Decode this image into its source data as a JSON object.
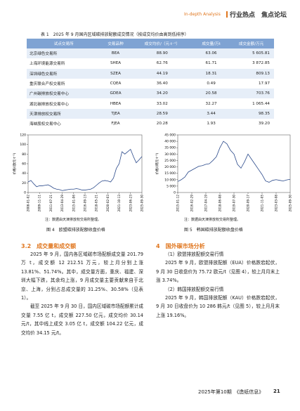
{
  "header": {
    "section_en": "In-depth Analysis",
    "section": "行业热点　焦点论坛"
  },
  "table": {
    "caption": "表 1　2025 年 9 月国内区域碳排放配额成交情况（按成交均价由高到低排序）",
    "columns": [
      "试点交易所",
      "交易品种",
      "成交均价/（元·t⁻¹）",
      "成交量/万t",
      "成交金额/万元"
    ],
    "rows": [
      [
        "北京绿色交易所",
        "BEA",
        "88.90",
        "63.06",
        "5 605.81"
      ],
      [
        "上海环境能源交易所",
        "SHEA",
        "62.76",
        "61.71",
        "3 872.85"
      ],
      [
        "深圳绿色交易所",
        "SZEA",
        "44.19",
        "18.31",
        "809.13"
      ],
      [
        "重庆联合产权交易所",
        "CQEA",
        "36.40",
        "0.49",
        "17.97"
      ],
      [
        "广州碳排放权交易中心",
        "GDEA",
        "34.20",
        "20.58",
        "703.76"
      ],
      [
        "湖北碳排放权交易中心",
        "HBEA",
        "33.02",
        "32.27",
        "1 065.44"
      ],
      [
        "天津排放权交易所",
        "TJEA",
        "28.59",
        "3.44",
        "98.35"
      ],
      [
        "海峡股权交易中心",
        "FJEA",
        "20.28",
        "1.93",
        "39.20"
      ]
    ]
  },
  "chart_data": [
    {
      "type": "line",
      "y_label": "价格/(欧元·t⁻¹)",
      "note": "注：数据由天津排放权交易所整理。",
      "caption": "图 4　欧盟碳排放配额收盘价格",
      "color": "#2b4a8b",
      "categories": [
        "2008-01-02",
        null,
        null,
        null,
        "2009-11-11",
        null,
        null,
        null,
        "2011-07-21",
        null,
        null,
        null,
        "2013-04-29",
        null,
        null,
        null,
        "2015-01-06",
        null,
        null,
        null,
        "2016-09-13",
        null,
        null,
        null,
        "2018-05-21",
        null,
        null,
        null,
        "2020-02-03",
        null,
        null,
        null,
        "2021-10-13",
        null,
        null,
        null,
        "2023-06-23",
        null,
        null,
        null,
        "2025-09-30"
      ],
      "values": [
        22,
        25,
        18,
        12,
        14,
        14,
        15,
        16,
        13,
        9,
        7,
        6,
        4,
        5,
        6,
        7,
        7,
        8,
        7,
        5,
        5,
        6,
        7,
        10,
        15,
        20,
        24,
        25,
        24,
        22,
        30,
        50,
        60,
        85,
        80,
        85,
        90,
        75,
        62,
        68,
        75
      ],
      "ylim": [
        0,
        120
      ],
      "yticks": [
        0,
        20,
        40,
        60,
        80,
        100,
        120
      ]
    },
    {
      "type": "line",
      "y_label": "价格/(韩元·t⁻¹)",
      "note": "注：数据由天津排放权交易所整理。",
      "caption": "图 5　韩国碳排放配额收盘价格",
      "color": "#2b4a8b",
      "categories": [
        "2015-01-12",
        null,
        null,
        null,
        "2016-02-29",
        null,
        null,
        null,
        "2017-04-19",
        null,
        null,
        null,
        "2018-06-08",
        null,
        null,
        null,
        "2019-07-30",
        null,
        null,
        null,
        "2020-09-17",
        null,
        null,
        null,
        "2021-11-05",
        null,
        null,
        null,
        "2023-03-08",
        null,
        null,
        null,
        "2025-09-30"
      ],
      "values": [
        8600,
        10000,
        12000,
        16000,
        17500,
        19000,
        20500,
        21000,
        22000,
        22500,
        25000,
        28000,
        35000,
        40000,
        38000,
        33000,
        30000,
        22000,
        19000,
        24000,
        30000,
        26000,
        22000,
        18000,
        14000,
        9000,
        8000,
        9500,
        10000,
        9500,
        9000,
        9800,
        10300
      ],
      "ylim": [
        0,
        45000
      ],
      "yticks": [
        0,
        {
          "value": 5000,
          "label": "5 000"
        },
        {
          "value": 10000,
          "label": "10 000"
        },
        {
          "value": 15000,
          "label": "15 000"
        },
        {
          "value": 20000,
          "label": "20 000"
        },
        {
          "value": 25000,
          "label": "25 000"
        },
        {
          "value": 30000,
          "label": "30 000"
        },
        {
          "value": 35000,
          "label": "35 000"
        },
        {
          "value": 40000,
          "label": "40 000"
        },
        {
          "value": 45000,
          "label": "45 000"
        }
      ]
    }
  ],
  "left": {
    "heading": "3.2　成交量和成交额",
    "paragraphs": [
      "2025 年 9 月，国内各区域碳市场配额成交量 201.79 万 t，成交额 12 212.51 万元，较上月分别上涨 13.81%、51.74%。其中，成交量方面，重庆、福建、深圳大幅下跌，其余均上涨，9 月成交量主要贡献来自于北京、上海，分别占总成交量的 31.25%、30.58%（见表 1）。",
      "截至 2025 年 9 月 30 日，国内区域碳市场配额累计成交量 7.55 亿 t，成交额 227.50 亿元，成交均价 30.14 元/t，其中线上成交 3.05 亿 t，成交额 104.22 亿元，成交均价 34.15 元/t。"
    ]
  },
  "right": {
    "heading": "4　国外碳市场分析",
    "paragraphs": [
      "（1）欧盟排放配额交易行情",
      "2025 年 9 月，欧盟排放配额（EUA）价格跌宕起伏，9 月 30 日收盘价为 75.72 欧元/t（见图 4），较上月月末上涨 3.74%。",
      "（2）韩国排放配额交易行情",
      "2025 年 9 月，韩国排放配额（KAU）价格跌宕起伏，9 月 30 日收盘价为 10 286 韩元/t（见图 5），较上月月末上涨 19.16%。"
    ]
  },
  "footer": {
    "issue": "2025年第10期　《造纸信息》",
    "page": "21"
  }
}
